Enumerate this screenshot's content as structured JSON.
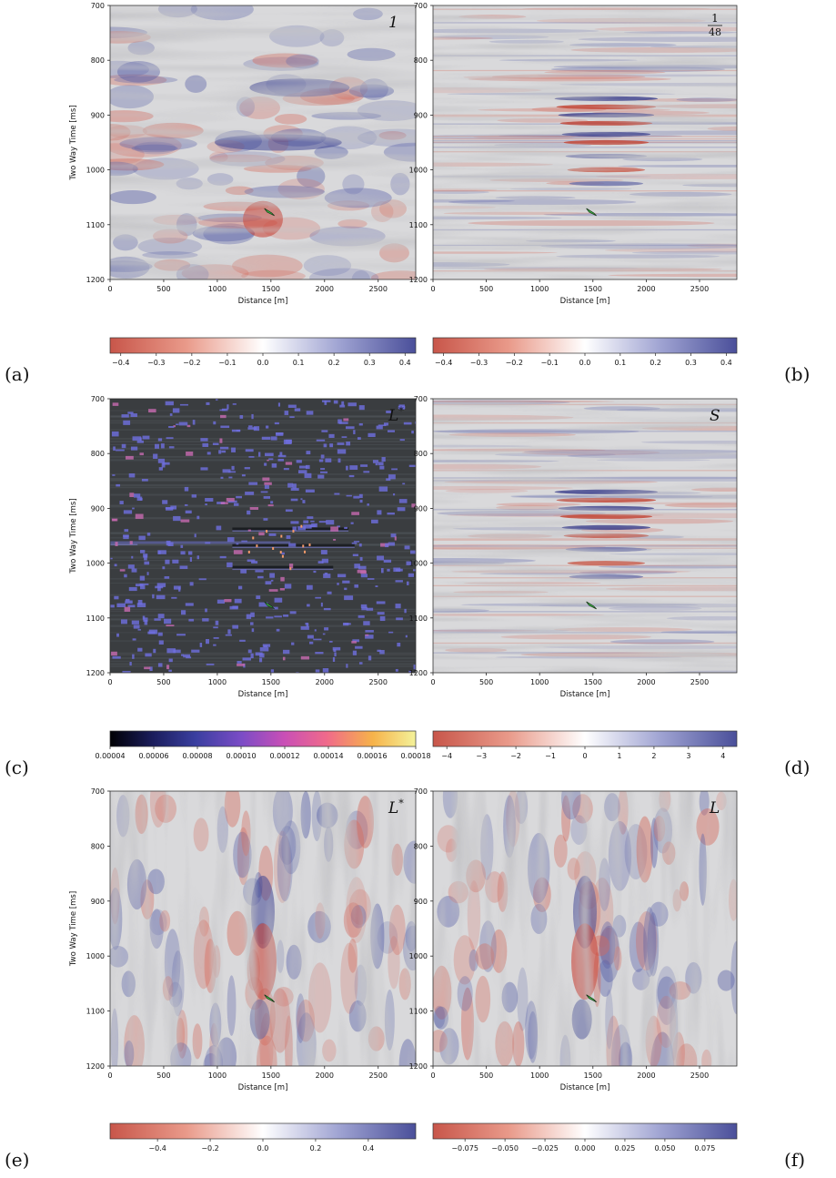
{
  "figure": {
    "y_axis_label": "Two Way Time [ms]",
    "x_axis_label": "Distance [m]",
    "y_ticks": [
      "700",
      "800",
      "900",
      "1000",
      "1100",
      "1200"
    ],
    "x_ticks": [
      "0",
      "500",
      "1000",
      "1500",
      "2000",
      "2500"
    ],
    "y_range": [
      700,
      1200
    ],
    "x_range": [
      0,
      2850
    ]
  },
  "panels": [
    {
      "letter": "(a)",
      "tag": "1",
      "style": "seismic-coarse",
      "show_y_label": true,
      "colorbar": {
        "palette": "red-white-blue",
        "ticks": [
          "−0.4",
          "−0.3",
          "−0.2",
          "−0.1",
          "0.0",
          "0.1",
          "0.2",
          "0.3",
          "0.4"
        ],
        "range": [
          -0.43,
          0.43
        ]
      }
    },
    {
      "letter": "(b)",
      "tag_fraction": {
        "num": "1",
        "den": "48"
      },
      "style": "seismic-fine",
      "show_y_label": false,
      "colorbar": {
        "palette": "red-white-blue",
        "ticks": [
          "−0.4",
          "−0.3",
          "−0.2",
          "−0.1",
          "0.0",
          "0.1",
          "0.2",
          "0.3",
          "0.4"
        ],
        "range": [
          -0.43,
          0.43
        ]
      }
    },
    {
      "letter": "(c)",
      "tag": "L",
      "tag_superscript": "*",
      "style": "dark-sparse",
      "show_y_label": true,
      "colorbar": {
        "palette": "black-blue-magenta-yellow",
        "ticks": [
          "0.00004",
          "0.00006",
          "0.00008",
          "0.00010",
          "0.00012",
          "0.00014",
          "0.00016",
          "0.00018"
        ],
        "range": [
          4e-05,
          0.00018
        ]
      }
    },
    {
      "letter": "(d)",
      "tag": "S",
      "style": "seismic-fine",
      "show_y_label": false,
      "colorbar": {
        "palette": "red-white-blue",
        "ticks": [
          "−4",
          "−3",
          "−2",
          "−1",
          "0",
          "1",
          "2",
          "3",
          "4"
        ],
        "range": [
          -4.4,
          4.4
        ]
      }
    },
    {
      "letter": "(e)",
      "tag": "L",
      "tag_superscript": "*",
      "style": "seismic-vertical",
      "show_y_label": true,
      "colorbar": {
        "palette": "red-white-blue",
        "ticks": [
          "−0.4",
          "−0.2",
          "0.0",
          "0.2",
          "0.4"
        ],
        "range": [
          -0.58,
          0.58
        ]
      }
    },
    {
      "letter": "(f)",
      "tag": "L",
      "style": "seismic-vertical",
      "show_y_label": false,
      "colorbar": {
        "palette": "red-white-blue",
        "ticks": [
          "−0.075",
          "−0.050",
          "−0.025",
          "0.000",
          "0.025",
          "0.050",
          "0.075"
        ],
        "range": [
          -0.095,
          0.095
        ]
      }
    }
  ],
  "colors": {
    "neg": "#c8564a",
    "mid": "#ffffff",
    "pos": "#4a4f9a",
    "marker": "#3fc94a",
    "dark_bg": "#3a3d40"
  }
}
